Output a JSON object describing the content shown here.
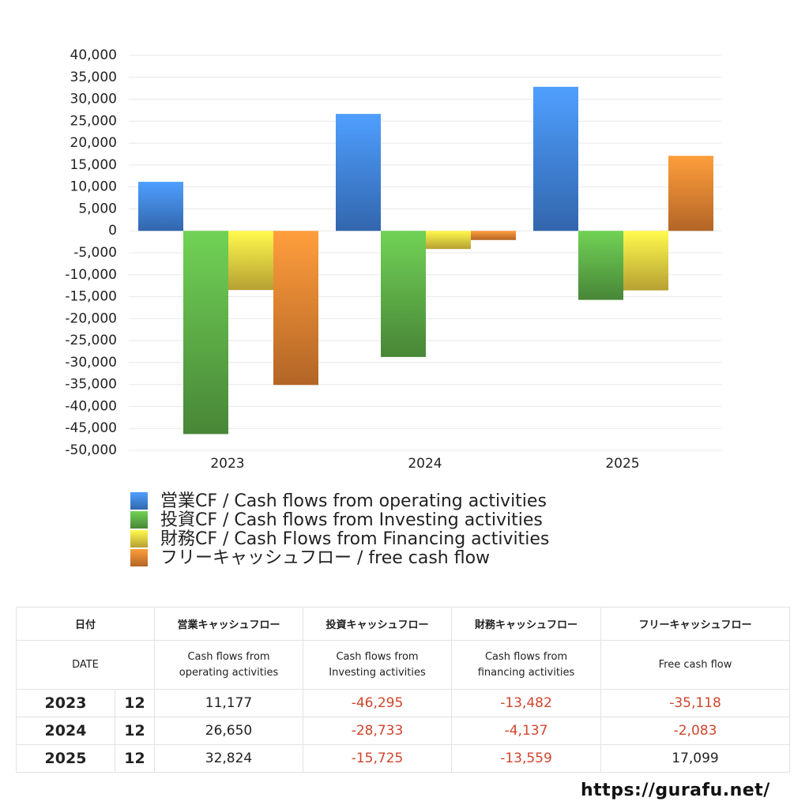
{
  "chart_data": {
    "type": "bar",
    "categories": [
      "2023",
      "2024",
      "2025"
    ],
    "series": [
      {
        "name": "営業CF / Cash flows from operating activities",
        "color": "#3f7fd8",
        "values": [
          11177,
          26650,
          32824
        ]
      },
      {
        "name": "投資CF / Cash flows from Investing activities",
        "color": "#5aa845",
        "values": [
          -46295,
          -28733,
          -15725
        ]
      },
      {
        "name": "財務CF / Cash Flows from Financing activities",
        "color": "#e3c83e",
        "values": [
          -13482,
          -4137,
          -13559
        ]
      },
      {
        "name": "フリーキャッシュフロー / free cash flow",
        "color": "#e07e30",
        "values": [
          -35118,
          -2083,
          17099
        ]
      }
    ],
    "ylim": [
      -50000,
      40000
    ],
    "yticks": [
      {
        "value": -50000,
        "label": "-50,000"
      },
      {
        "value": -45000,
        "label": "-45,000"
      },
      {
        "value": -40000,
        "label": "-40,000"
      },
      {
        "value": -35000,
        "label": "-35,000"
      },
      {
        "value": -30000,
        "label": "-30,000"
      },
      {
        "value": -25000,
        "label": "-25,000"
      },
      {
        "value": -20000,
        "label": "-20,000"
      },
      {
        "value": -15000,
        "label": "-15,000"
      },
      {
        "value": -10000,
        "label": "-10,000"
      },
      {
        "value": -5000,
        "label": "-5,000"
      },
      0,
      {
        "value": 5000,
        "label": "5,000"
      },
      {
        "value": 10000,
        "label": "10,000"
      },
      {
        "value": 15000,
        "label": "15,000"
      },
      {
        "value": 20000,
        "label": "20,000"
      },
      {
        "value": 25000,
        "label": "25,000"
      },
      {
        "value": 30000,
        "label": "30,000"
      },
      {
        "value": 35000,
        "label": "35,000"
      },
      {
        "value": 40000,
        "label": "40,000"
      }
    ],
    "grid": true
  },
  "table": {
    "header": [
      "日付",
      "営業キャッシュフロー",
      "投資キャッシュフロー",
      "財務キャッシュフロー",
      "フリーキャッシュフロー"
    ],
    "subheader": [
      "DATE",
      "Cash flows from operating activities",
      "Cash flows from Investing activities",
      "Cash flows from financing activities",
      "Free cash flow"
    ],
    "rows": [
      [
        "2023",
        "12",
        "11,177",
        "-46,295",
        "-13,482",
        "-35,118"
      ],
      [
        "2024",
        "12",
        "26,650",
        "-28,733",
        "-4,137",
        "-2,083"
      ],
      [
        "2025",
        "12",
        "32,824",
        "-15,725",
        "-13,559",
        "17,099"
      ]
    ]
  },
  "footer": "https://gurafu.net/"
}
